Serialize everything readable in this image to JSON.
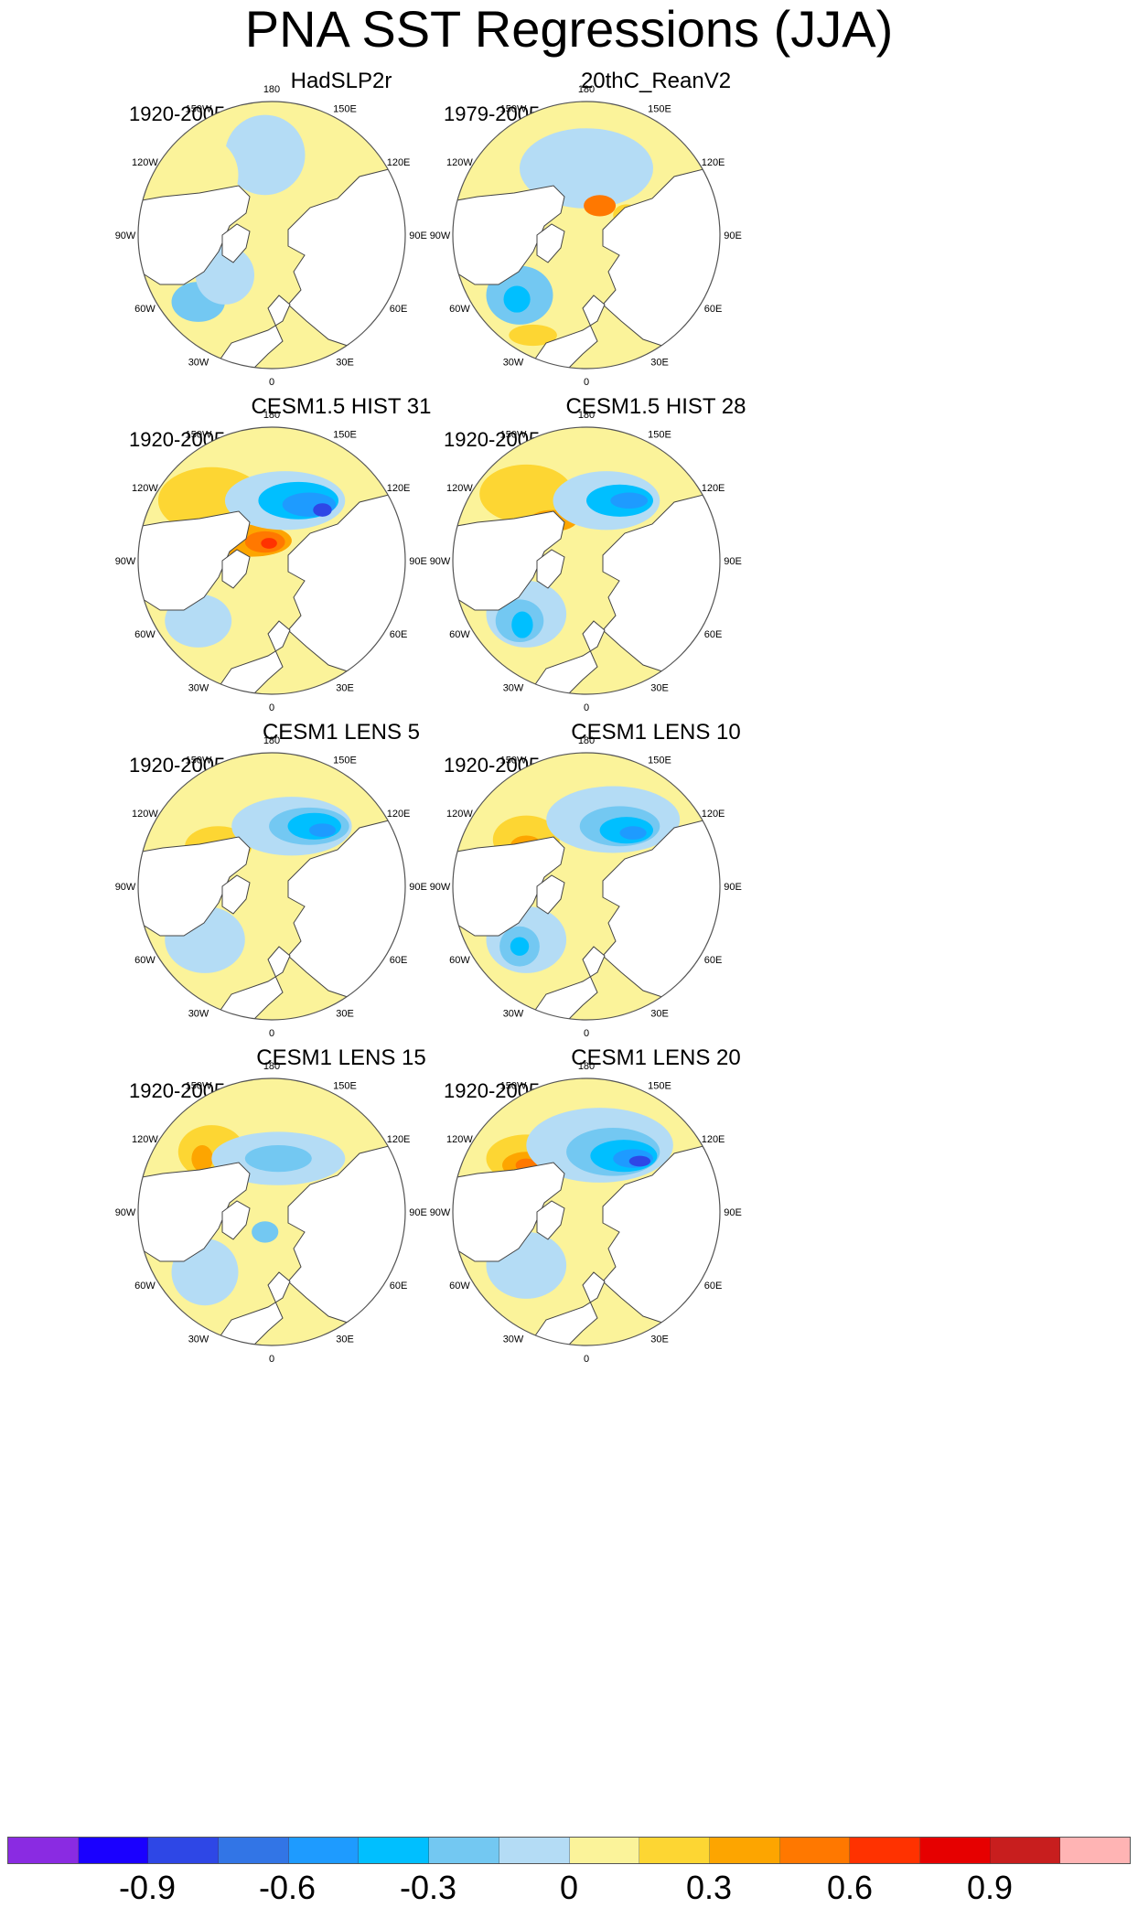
{
  "title": "PNA SST Regressions (JJA)",
  "lon_labels": [
    "180",
    "150E",
    "120E",
    "90E",
    "60E",
    "30E",
    "0",
    "30W",
    "60W",
    "90W",
    "120W",
    "150W"
  ],
  "panels": [
    {
      "title": "HadSLP2r",
      "period": "1920-2005",
      "pattern": "obs1"
    },
    {
      "title": "20thC_ReanV2",
      "period": "1979-2005",
      "pattern": "obs2"
    },
    {
      "title": "CESM1.5 HIST 31",
      "period": "1920-2005",
      "pattern": "strong"
    },
    {
      "title": "CESM1.5 HIST 28",
      "period": "1920-2005",
      "pattern": "strong2"
    },
    {
      "title": "CESM1 LENS 5",
      "period": "1920-2005",
      "pattern": "medium"
    },
    {
      "title": "CESM1 LENS 10",
      "period": "1920-2005",
      "pattern": "medium2"
    },
    {
      "title": "CESM1 LENS 15",
      "period": "1920-2005",
      "pattern": "weak"
    },
    {
      "title": "CESM1 LENS 20",
      "period": "1920-2005",
      "pattern": "medium3"
    }
  ],
  "colorbar": {
    "colors": [
      "#8a2be2",
      "#1a00ff",
      "#2e47e6",
      "#3275e6",
      "#1e9bff",
      "#00bfff",
      "#73c8f2",
      "#b4dcf5",
      "#fbf39a",
      "#fdd633",
      "#fda500",
      "#ff7800",
      "#ff3200",
      "#e60000",
      "#c81e1e",
      "#ffb4b4"
    ],
    "labels": [
      "-0.9",
      "-0.6",
      "-0.3",
      "0",
      "0.3",
      "0.6",
      "0.9"
    ]
  },
  "palette": {
    "land": "#ffffff",
    "coast": "#444444",
    "rim": "#555555",
    "y": "#fbf39a",
    "l": "#b4dcf5",
    "m": "#73c8f2",
    "c": "#00bfff",
    "b": "#1e9bff",
    "d": "#3275e6",
    "e": "#2e47e6",
    "o": "#fdd633",
    "a": "#fda500",
    "r": "#ff7800",
    "x": "#ff3200"
  }
}
